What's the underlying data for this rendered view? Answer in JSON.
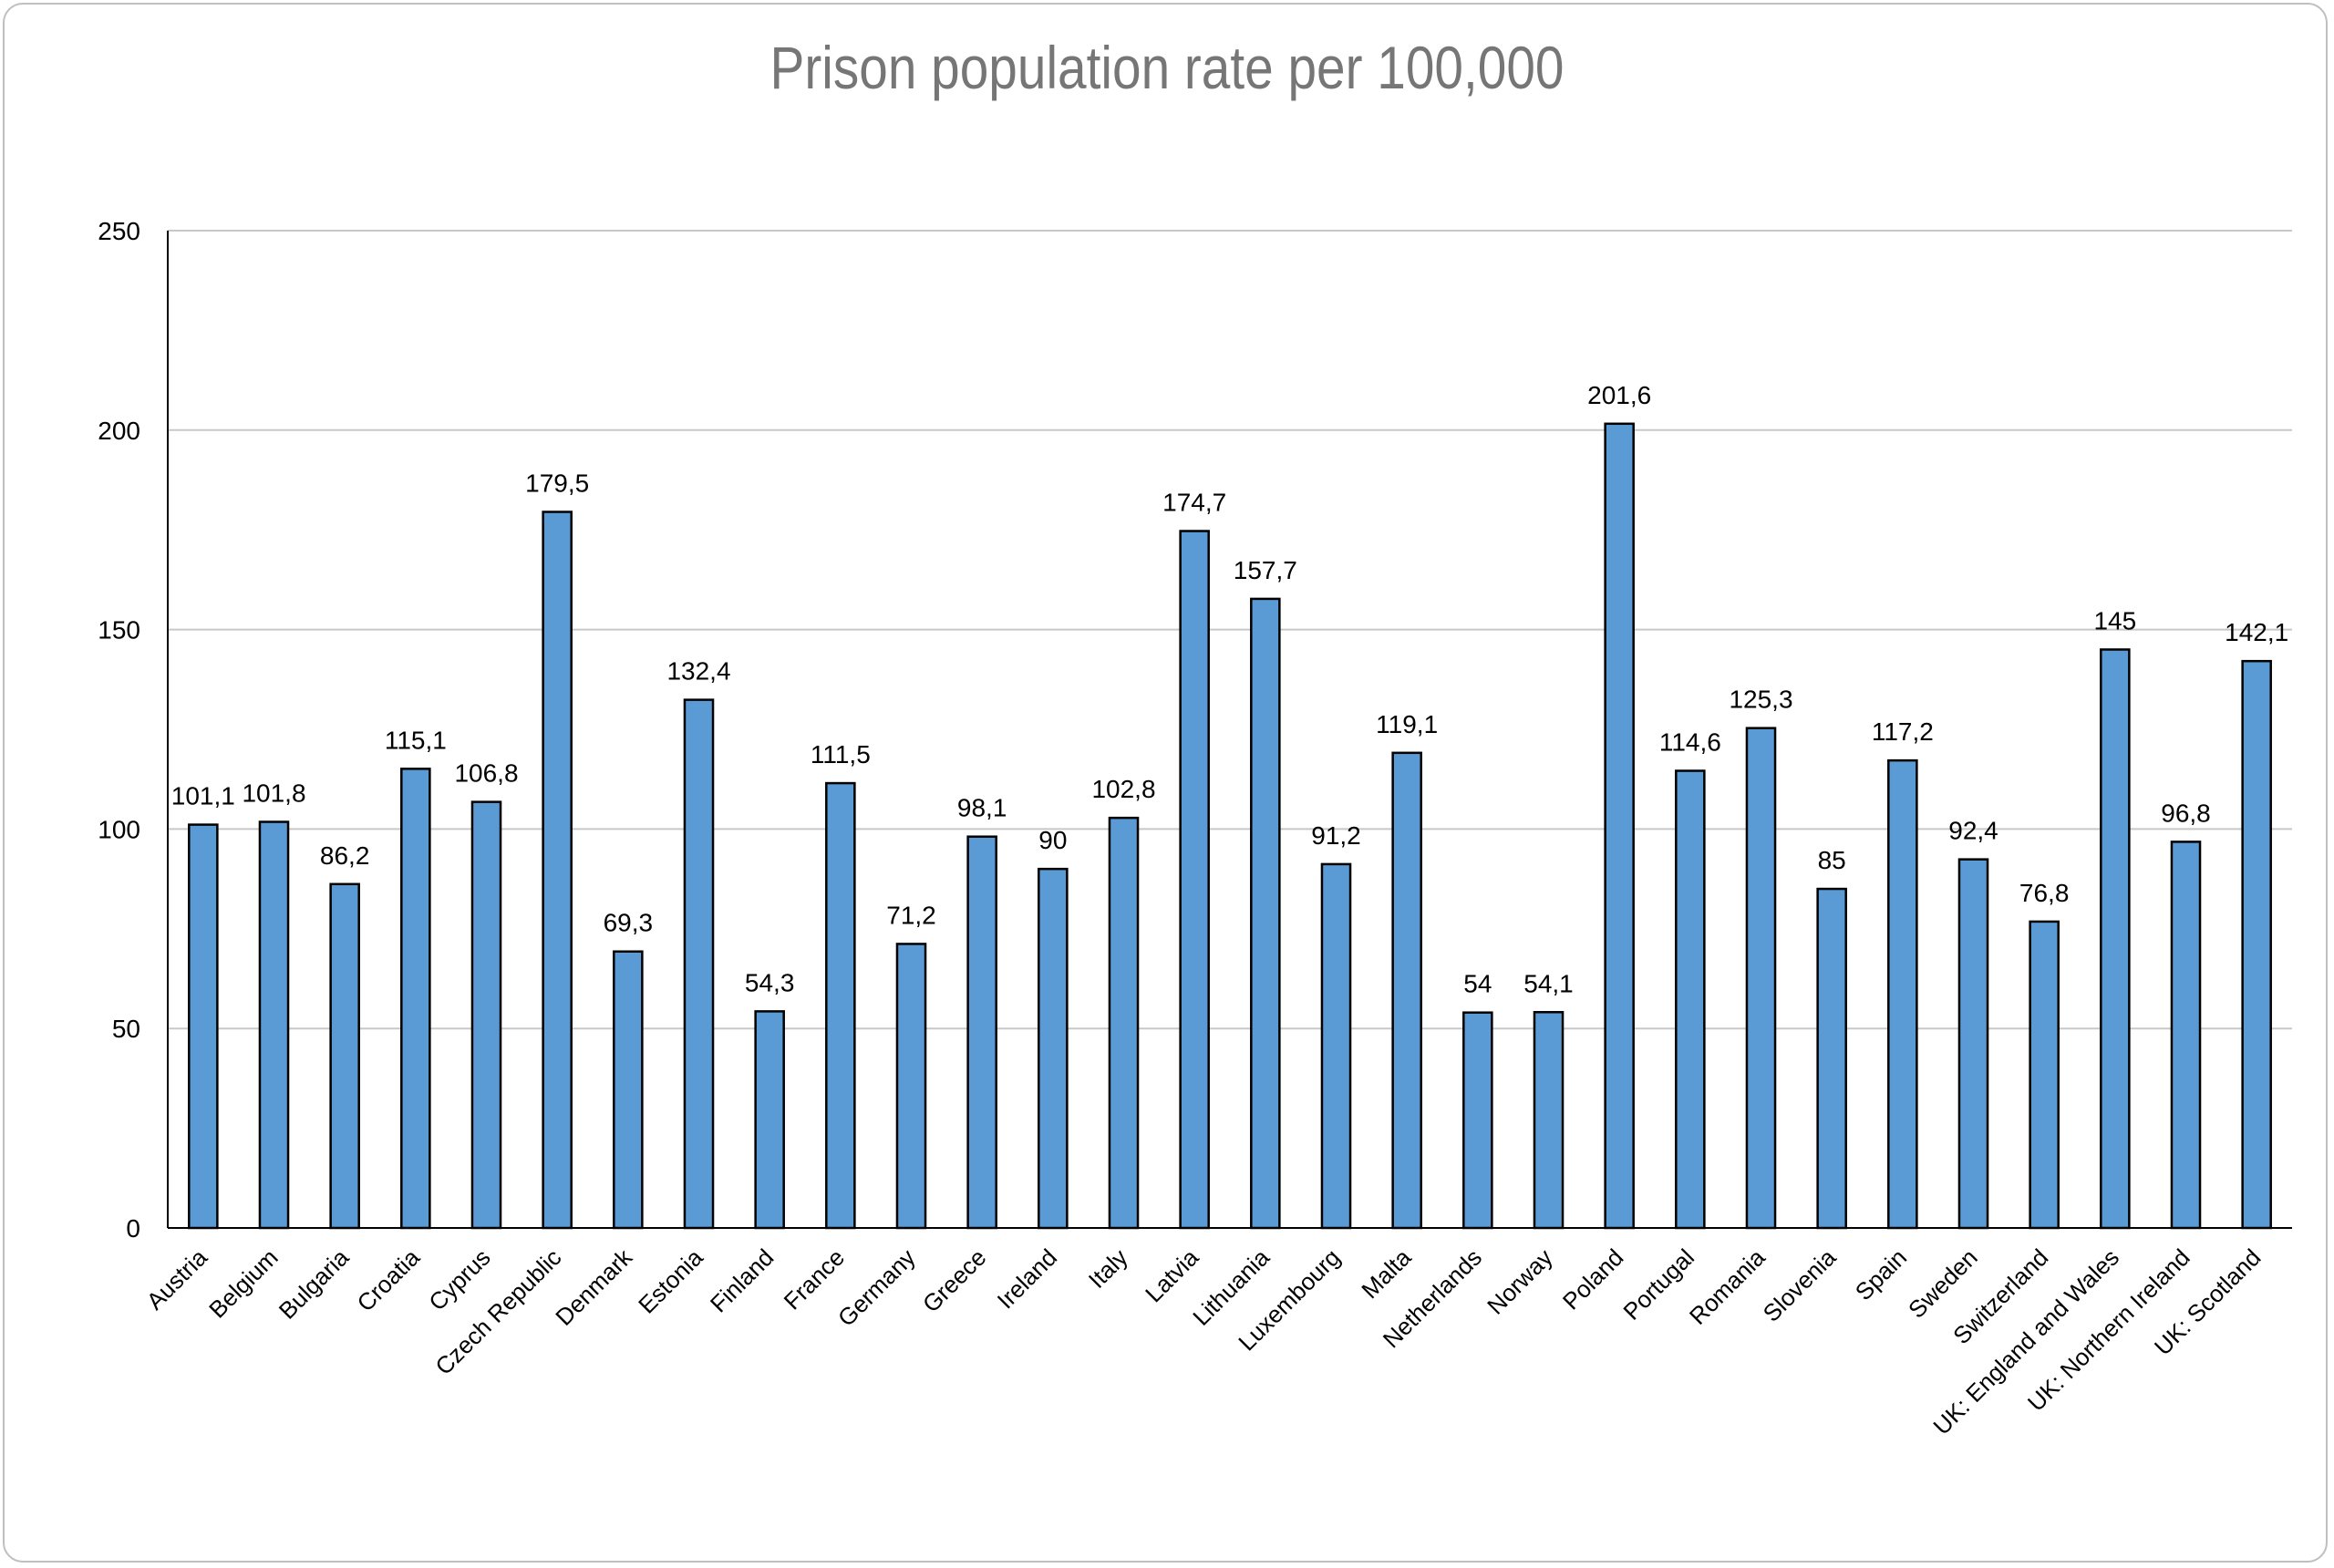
{
  "chart_data": {
    "type": "bar",
    "title": "Prison population rate per 100,000",
    "xlabel": "",
    "ylabel": "",
    "ylim": [
      0,
      250
    ],
    "yticks": [
      0,
      50,
      100,
      150,
      200,
      250
    ],
    "grid": true,
    "legend": "none",
    "bar_color": "#5B9BD5",
    "bar_edge_color": "#000000",
    "title_color": "#767676",
    "categories": [
      "Austria",
      "Belgium",
      "Bulgaria",
      "Croatia",
      "Cyprus",
      "Czech Republic",
      "Denmark",
      "Estonia",
      "Finland",
      "France",
      "Germany",
      "Greece",
      "Ireland",
      "Italy",
      "Latvia",
      "Lithuania",
      "Luxembourg",
      "Malta",
      "Netherlands",
      "Norway",
      "Poland",
      "Portugal",
      "Romania",
      "Slovenia",
      "Spain",
      "Sweden",
      "Switzerland",
      "UK: England and Wales",
      "UK: Northern Ireland",
      "UK: Scotland"
    ],
    "values": [
      101.1,
      101.8,
      86.2,
      115.1,
      106.8,
      179.5,
      69.3,
      132.4,
      54.3,
      111.5,
      71.2,
      98.1,
      90,
      102.8,
      174.7,
      157.7,
      91.2,
      119.1,
      54,
      54.1,
      201.6,
      114.6,
      125.3,
      85,
      117.2,
      92.4,
      76.8,
      145,
      96.8,
      142.1
    ],
    "data_labels": [
      "101,1",
      "101,8",
      "86,2",
      "115,1",
      "106,8",
      "179,5",
      "69,3",
      "132,4",
      "54,3",
      "111,5",
      "71,2",
      "98,1",
      "90",
      "102,8",
      "174,7",
      "157,7",
      "91,2",
      "119,1",
      "54",
      "54,1",
      "201,6",
      "114,6",
      "125,3",
      "85",
      "117,2",
      "92,4",
      "76,8",
      "145",
      "96,8",
      "142,1"
    ]
  }
}
